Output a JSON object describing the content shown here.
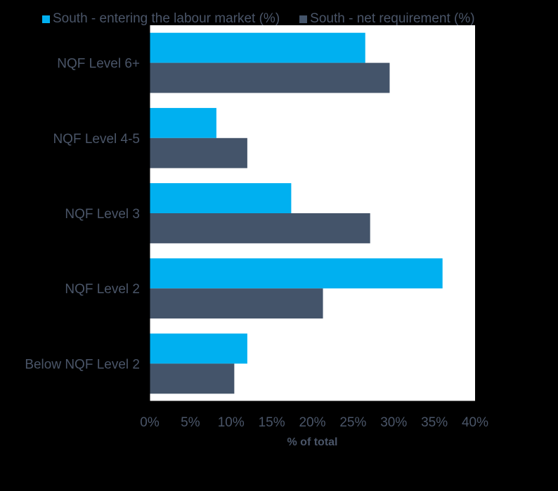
{
  "chart_data": {
    "type": "bar",
    "orientation": "horizontal",
    "categories": [
      "NQF Level 6+",
      "NQF Level 4-5",
      "NQF Level 3",
      "NQF Level 2",
      "Below NQF Level 2"
    ],
    "series": [
      {
        "name": "South -  entering the labour market (%)",
        "color": "#00b0f0",
        "values": [
          26.5,
          8.2,
          17.4,
          36.0,
          12.0
        ]
      },
      {
        "name": "South - net requirement (%)",
        "color": "#44546a",
        "values": [
          29.5,
          12.0,
          27.1,
          21.3,
          10.4
        ]
      }
    ],
    "xlabel": "% of total",
    "xlim": [
      0,
      40
    ],
    "xticks": [
      0,
      5,
      10,
      15,
      20,
      25,
      30,
      35,
      40
    ],
    "xtick_labels": [
      "0%",
      "5%",
      "10%",
      "15%",
      "20%",
      "25%",
      "30%",
      "35%",
      "40%"
    ],
    "grid": false,
    "legend_position": "top",
    "plot_background": "#ffffff",
    "page_background": "#000000",
    "text_color": "#4a5568"
  }
}
